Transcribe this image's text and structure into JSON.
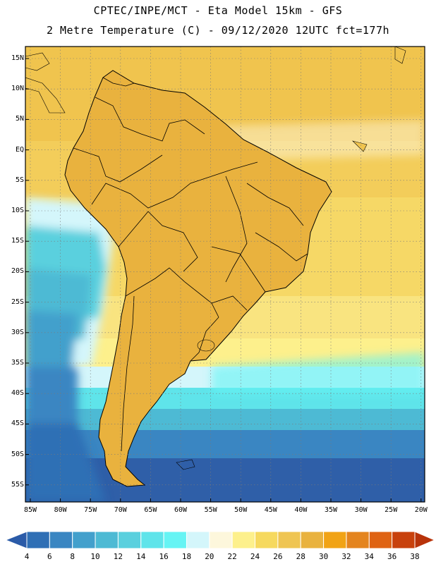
{
  "header": {
    "line1": "CPTEC/INPE/MCT -  Eta Model 15km - GFS",
    "line2": "2 Metre Temperature (C) - 09/12/2020 12UTC fct=177h"
  },
  "map": {
    "lat_labels": [
      "15N",
      "10N",
      "5N",
      "EQ",
      "5S",
      "10S",
      "15S",
      "20S",
      "25S",
      "30S",
      "35S",
      "40S",
      "45S",
      "50S",
      "55S"
    ],
    "lon_labels": [
      "85W",
      "80W",
      "75W",
      "70W",
      "65W",
      "60W",
      "55W",
      "50W",
      "45W",
      "40W",
      "35W",
      "30W",
      "25W",
      "20W"
    ]
  },
  "colorbar": {
    "labels": [
      "4",
      "6",
      "8",
      "10",
      "12",
      "14",
      "16",
      "18",
      "20",
      "22",
      "24",
      "26",
      "28",
      "30",
      "32",
      "34",
      "36",
      "38"
    ],
    "colors": [
      "#2b5ba8",
      "#2f6fb5",
      "#3a86c2",
      "#43a0cc",
      "#4dbad4",
      "#5ad0de",
      "#5fe4ea",
      "#66f4f4",
      "#d4f6fb",
      "#fdf7dc",
      "#fdf08c",
      "#f6d95e",
      "#efc552",
      "#e9b23e",
      "#f1a315",
      "#e4841e",
      "#df6313",
      "#c8410c",
      "#b8330a"
    ]
  }
}
